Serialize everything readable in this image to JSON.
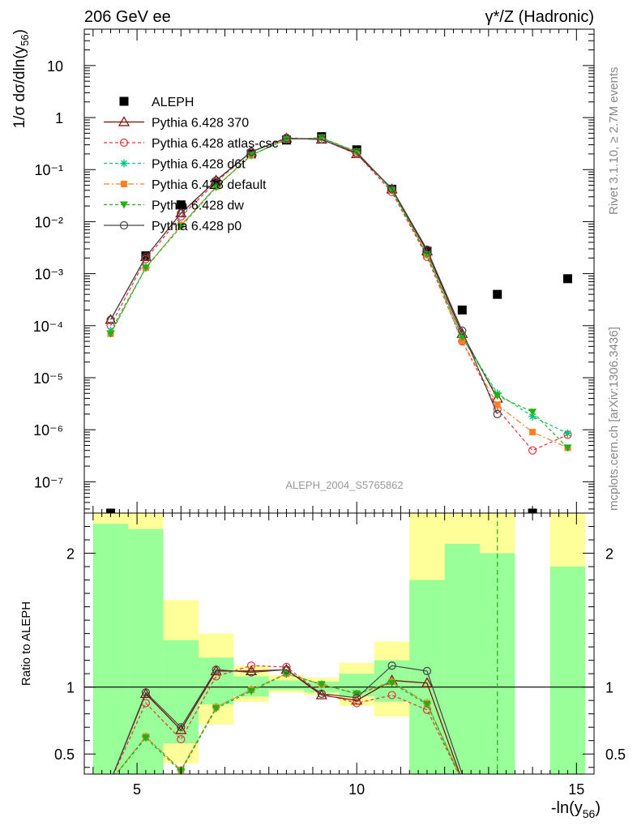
{
  "header": {
    "left": "206 GeV ee",
    "right": "γ*/Z (Hadronic)"
  },
  "side_text": {
    "rivet": "Rivet 3.1.10, ≥ 2.7M events",
    "mcplots": "mcplots.cern.ch [arXiv:1306.3436]"
  },
  "watermark": "ALEPH_2004_S5765862",
  "chart_data": [
    {
      "type": "line",
      "panel": "main",
      "ylabel": "1/σ  dσ/dln(y56)",
      "yscale": "log",
      "ylim": [
        2.5e-08,
        50
      ],
      "xlim": [
        3.8,
        15.4
      ],
      "y_ticks": [
        "10⁻⁷",
        "10⁻⁶",
        "10⁻⁵",
        "10⁻⁴",
        "10⁻³",
        "10⁻²",
        "10⁻¹",
        "1",
        "10"
      ],
      "legend_position": "top-left",
      "x": [
        4.4,
        5.2,
        6.0,
        6.8,
        7.6,
        8.4,
        9.2,
        10.0,
        10.8,
        11.6,
        12.4,
        13.2,
        14.0,
        14.8
      ],
      "series": [
        {
          "name": "ALEPH",
          "color": "#000000",
          "marker": "square",
          "values": [
            2.5e-08,
            0.0022,
            0.021,
            0.055,
            0.2,
            0.37,
            0.43,
            0.24,
            0.042,
            0.0027,
            0.0002,
            0.0004,
            2.5e-08,
            0.0008
          ]
        },
        {
          "name": "Pythia 6.428 370",
          "color": "#800000",
          "marker": "triangle-open",
          "dash": "",
          "values": [
            0.00013,
            0.0021,
            0.0145,
            0.062,
            0.22,
            0.4,
            0.38,
            0.2,
            0.042,
            0.0027,
            7e-05,
            4e-06,
            null,
            null
          ]
        },
        {
          "name": "Pythia 6.428 atlas-csc",
          "color": "#e8303a",
          "marker": "circle-open",
          "dash": "4,3",
          "values": [
            0.0001,
            0.0019,
            0.0125,
            0.058,
            0.22,
            0.41,
            0.38,
            0.2,
            0.037,
            0.0021,
            5e-05,
            2.5e-06,
            4e-07,
            8e-07
          ]
        },
        {
          "name": "Pythia 6.428 d6t",
          "color": "#00c07a",
          "marker": "star",
          "dash": "4,3",
          "values": [
            8e-05,
            0.0013,
            0.0085,
            0.047,
            0.19,
            0.38,
            0.4,
            0.22,
            0.04,
            0.0024,
            6e-05,
            5e-06,
            1.8e-06,
            8.5e-07
          ]
        },
        {
          "name": "Pythia 6.428 default",
          "color": "#ff7f27",
          "marker": "square-filled",
          "dash": "7,3,2,3",
          "values": [
            7e-05,
            0.0013,
            0.0085,
            0.047,
            0.19,
            0.38,
            0.41,
            0.22,
            0.04,
            0.0023,
            5e-05,
            3e-06,
            9e-07,
            4.5e-07
          ]
        },
        {
          "name": "Pythia 6.428 dw",
          "color": "#22b014",
          "marker": "triangle-down",
          "dash": "4,3",
          "values": [
            7e-05,
            0.0013,
            0.008,
            0.046,
            0.19,
            0.38,
            0.41,
            0.22,
            0.04,
            0.0023,
            6e-05,
            4.5e-06,
            2.2e-06,
            4.5e-07
          ]
        },
        {
          "name": "Pythia 6.428 p0",
          "color": "#444444",
          "marker": "circle-open",
          "dash": "",
          "values": [
            0.00013,
            0.0021,
            0.0145,
            0.062,
            0.22,
            0.4,
            0.38,
            0.21,
            0.043,
            0.0029,
            8e-05,
            2e-06,
            null,
            null
          ]
        }
      ]
    },
    {
      "type": "line",
      "panel": "ratio",
      "xlabel": "-ln(y56)",
      "ylabel": "Ratio to ALEPH",
      "ylim": [
        0.35,
        2.3
      ],
      "xlim": [
        3.8,
        15.4
      ],
      "x_ticks": [
        5,
        10,
        15
      ],
      "y_ticks": [
        0.5,
        1,
        2
      ],
      "bins": [
        [
          4.0,
          4.8
        ],
        [
          4.8,
          5.6
        ],
        [
          5.6,
          6.4
        ],
        [
          6.4,
          7.2
        ],
        [
          7.2,
          8.0
        ],
        [
          8.0,
          8.8
        ],
        [
          8.8,
          9.6
        ],
        [
          9.6,
          10.4
        ],
        [
          10.4,
          11.2
        ],
        [
          11.2,
          12.0
        ],
        [
          12.0,
          12.8
        ],
        [
          12.8,
          13.6
        ],
        [
          13.6,
          14.4
        ],
        [
          14.4,
          15.2
        ]
      ],
      "band_yellow": [
        [
          0.35,
          2.3
        ],
        [
          0.35,
          2.3
        ],
        [
          0.43,
          1.65
        ],
        [
          0.72,
          1.4
        ],
        [
          0.89,
          1.16
        ],
        [
          0.96,
          1.09
        ],
        [
          0.94,
          1.07
        ],
        [
          0.86,
          1.18
        ],
        [
          0.78,
          1.34
        ],
        [
          0.35,
          2.3
        ],
        [
          0.35,
          2.3
        ],
        [
          0.35,
          2.3
        ],
        null,
        [
          0.35,
          2.3
        ]
      ],
      "band_green": [
        [
          0.35,
          2.22
        ],
        [
          0.35,
          2.18
        ],
        [
          0.58,
          1.35
        ],
        [
          0.87,
          1.22
        ],
        [
          0.93,
          1.08
        ],
        [
          0.98,
          1.05
        ],
        [
          0.96,
          1.04
        ],
        [
          0.93,
          1.1
        ],
        [
          0.89,
          1.2
        ],
        [
          0.35,
          1.8
        ],
        [
          0.35,
          2.07
        ],
        [
          0.35,
          2.0
        ],
        null,
        [
          0.35,
          1.9
        ]
      ],
      "x": [
        4.4,
        5.2,
        6.0,
        6.8,
        7.6,
        8.4,
        9.2,
        10.0,
        10.8,
        11.6,
        12.4
      ],
      "series": [
        {
          "color": "#800000",
          "marker": "triangle-open",
          "dash": "",
          "values": [
            0.3,
            0.95,
            0.68,
            1.12,
            1.12,
            1.13,
            0.94,
            0.9,
            1.05,
            1.03,
            0.3
          ]
        },
        {
          "color": "#e8303a",
          "marker": "circle-open",
          "dash": "4,3",
          "values": [
            0.3,
            0.88,
            0.61,
            1.08,
            1.16,
            1.15,
            0.95,
            0.88,
            0.94,
            0.83,
            0.3
          ]
        },
        {
          "color": "#00c07a",
          "marker": "star",
          "dash": "4,3",
          "values": [
            0.3,
            0.63,
            0.38,
            0.85,
            0.98,
            1.1,
            1.02,
            0.95,
            1.04,
            0.88,
            0.3
          ]
        },
        {
          "color": "#ff7f27",
          "marker": "square-filled",
          "dash": "7,3,2,3",
          "values": [
            0.3,
            0.63,
            0.38,
            0.85,
            0.98,
            1.1,
            1.02,
            0.95,
            1.04,
            0.88,
            0.3
          ]
        },
        {
          "color": "#22b014",
          "marker": "triangle-down",
          "dash": "4,3",
          "values": [
            0.3,
            0.62,
            0.37,
            0.84,
            0.97,
            1.1,
            1.02,
            0.95,
            1.03,
            0.87,
            0.3
          ]
        },
        {
          "color": "#444444",
          "marker": "circle-open",
          "dash": "",
          "values": [
            0.3,
            0.96,
            0.7,
            1.13,
            1.11,
            1.13,
            0.95,
            0.92,
            1.16,
            1.12,
            0.35
          ]
        }
      ],
      "dashed_vline_x": 13.2
    }
  ]
}
